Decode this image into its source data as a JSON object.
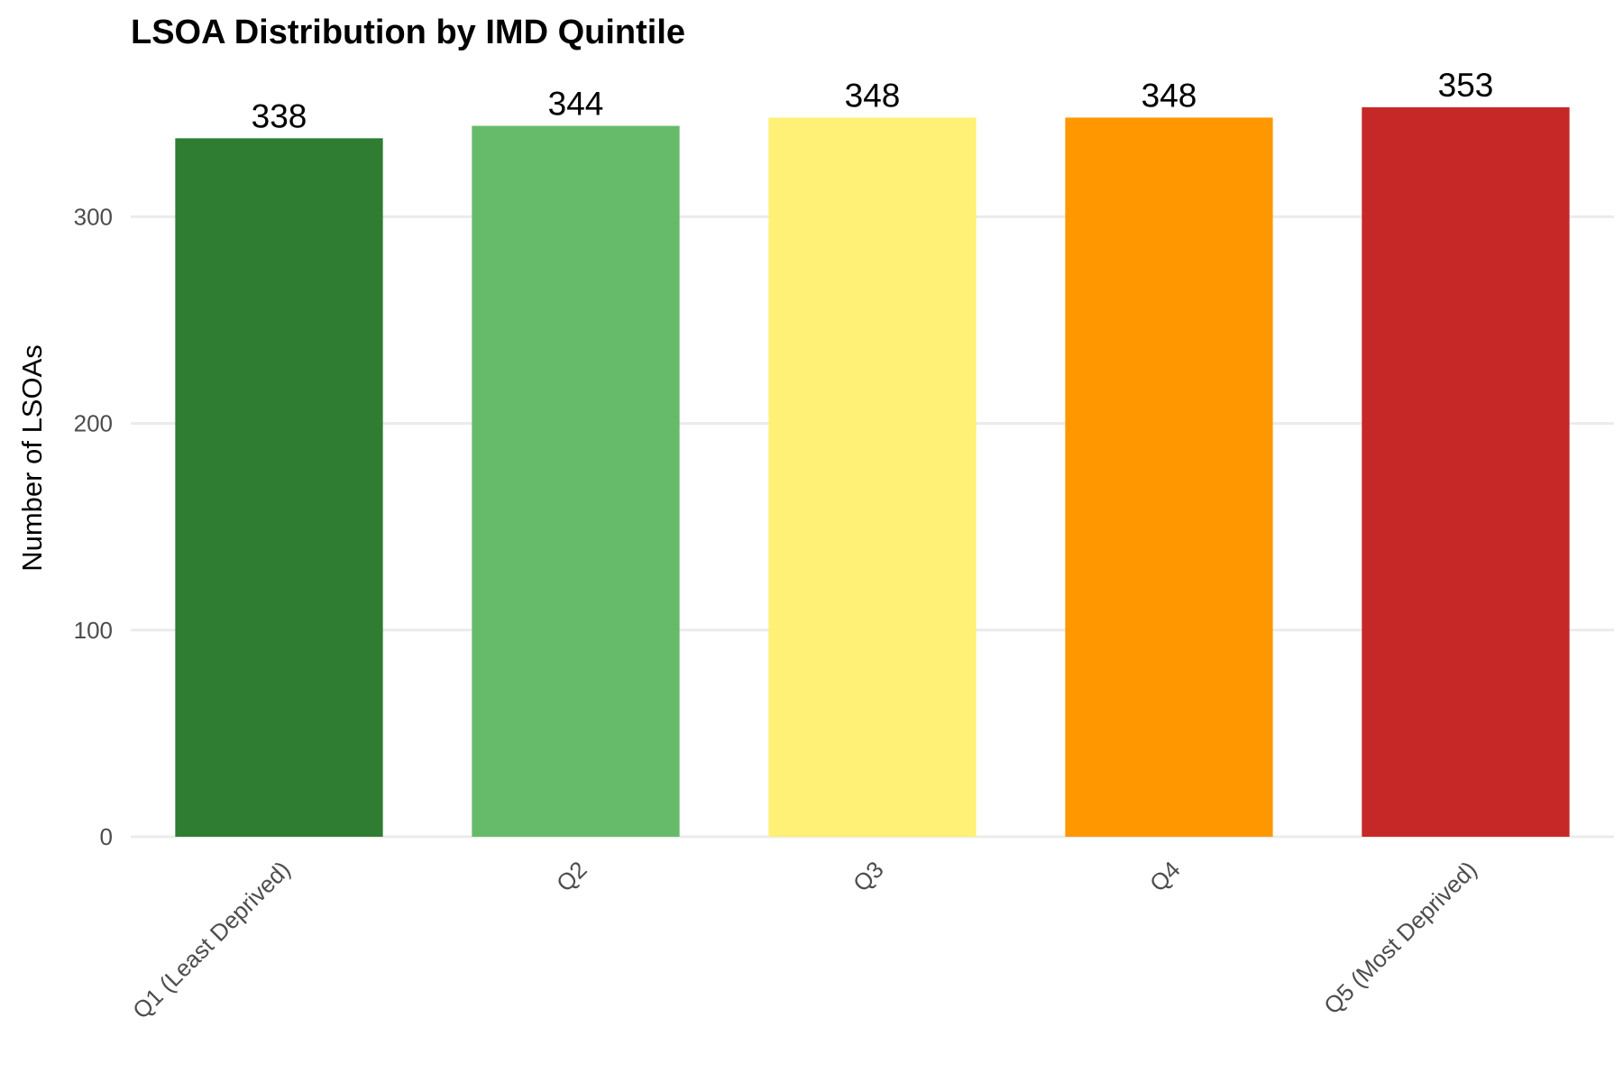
{
  "chart_data": {
    "type": "bar",
    "title": "LSOA Distribution by IMD Quintile",
    "xlabel": "",
    "ylabel": "Number of LSOAs",
    "categories": [
      "Q1 (Least Deprived)",
      "Q2",
      "Q3",
      "Q4",
      "Q5 (Most Deprived)"
    ],
    "values": [
      338,
      344,
      348,
      348,
      353
    ],
    "data_labels": [
      "338",
      "344",
      "348",
      "348",
      "353"
    ],
    "colors": [
      "#2e7d32",
      "#66bb6a",
      "#fff176",
      "#ff9800",
      "#c62828"
    ],
    "ylim": [
      0,
      370
    ],
    "yticks": [
      0,
      100,
      200,
      300
    ],
    "ytick_labels": [
      "0",
      "100",
      "200",
      "300"
    ],
    "grid": true,
    "legend": "none"
  }
}
